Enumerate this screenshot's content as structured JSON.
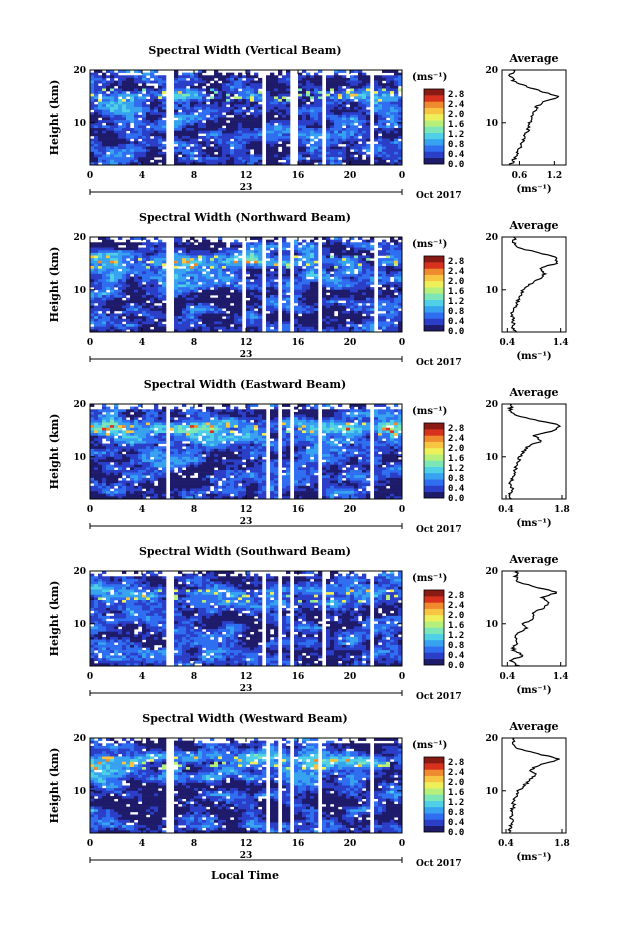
{
  "figure": {
    "x_axis_label": "Local Time",
    "date_suffix": "Oct 2017",
    "day_label": "23",
    "x_ticks": [
      "0",
      "4",
      "8",
      "12",
      "16",
      "20",
      "0"
    ],
    "y_label": "Height (km)",
    "y_ticks": [
      "20",
      "10"
    ],
    "colorbar_unit": "(ms⁻¹)",
    "colorbar_ticks": [
      "2.8",
      "2.4",
      "2.0",
      "1.6",
      "1.2",
      "0.8",
      "0.4",
      "0.0"
    ],
    "average_title": "Average",
    "average_unit": "(ms⁻¹)",
    "colors": {
      "colormap": [
        "#1f1b6b",
        "#2a3ec8",
        "#2f6ef0",
        "#36a2f0",
        "#4fd0e6",
        "#7ce6b6",
        "#b6ef7a",
        "#eef05a",
        "#f7c542",
        "#f08a2e",
        "#d8321e",
        "#8a1a14"
      ],
      "no_data": "#ffffff",
      "axis": "#000000"
    }
  },
  "chart_data": [
    {
      "type": "heatmap",
      "title": "Spectral Width (Vertical Beam)",
      "xlabel": "",
      "ylabel": "Height (km)",
      "xlim": [
        0,
        24
      ],
      "ylim": [
        2,
        20
      ],
      "color_range": [
        0.0,
        3.0
      ],
      "data_gaps_hours": [
        [
          5.9,
          6.4
        ],
        [
          13.3,
          13.6
        ],
        [
          14.4,
          14.6
        ],
        [
          15.3,
          15.9
        ],
        [
          17.8,
          18.1
        ],
        [
          21.6,
          21.9
        ]
      ],
      "average_profile": {
        "xlabel": "(ms⁻¹)",
        "xticks": [
          "0.6",
          "1.2"
        ],
        "xlim": [
          0.3,
          1.4
        ],
        "height_km": [
          2,
          3,
          4,
          5,
          6,
          7,
          8,
          9,
          10,
          11,
          12,
          13,
          14,
          15,
          16,
          17,
          18,
          19,
          20
        ],
        "value_ms": [
          0.45,
          0.5,
          0.55,
          0.6,
          0.63,
          0.68,
          0.72,
          0.75,
          0.78,
          0.8,
          0.85,
          0.9,
          1.0,
          1.3,
          0.95,
          0.7,
          0.5,
          0.45,
          0.5
        ]
      }
    },
    {
      "type": "heatmap",
      "title": "Spectral Width (Northward Beam)",
      "xlabel": "",
      "ylabel": "Height (km)",
      "xlim": [
        0,
        24
      ],
      "ylim": [
        2,
        20
      ],
      "color_range": [
        0.0,
        3.0
      ],
      "data_gaps_hours": [
        [
          6.0,
          6.5
        ],
        [
          11.7,
          12.0
        ],
        [
          13.3,
          13.6
        ],
        [
          14.6,
          14.9
        ],
        [
          15.3,
          15.6
        ],
        [
          17.6,
          17.9
        ],
        [
          21.7,
          22.0
        ]
      ],
      "average_profile": {
        "xlabel": "(ms⁻¹)",
        "xticks": [
          "0.4",
          "1.4"
        ],
        "xlim": [
          0.3,
          1.5
        ],
        "height_km": [
          2,
          3,
          4,
          5,
          6,
          7,
          8,
          9,
          10,
          11,
          12,
          13,
          14,
          15,
          16,
          17,
          18,
          19,
          20
        ],
        "value_ms": [
          0.55,
          0.5,
          0.52,
          0.48,
          0.5,
          0.55,
          0.6,
          0.65,
          0.7,
          0.8,
          1.0,
          1.1,
          1.0,
          1.3,
          1.35,
          1.0,
          0.6,
          0.5,
          0.55
        ]
      }
    },
    {
      "type": "heatmap",
      "title": "Spectral Width (Eastward Beam)",
      "xlabel": "",
      "ylabel": "Height (km)",
      "xlim": [
        0,
        24
      ],
      "ylim": [
        2,
        20
      ],
      "color_range": [
        0.0,
        3.0
      ],
      "data_gaps_hours": [
        [
          5.8,
          6.3
        ],
        [
          13.4,
          13.7
        ],
        [
          14.5,
          14.8
        ],
        [
          15.4,
          15.7
        ],
        [
          17.6,
          17.9
        ],
        [
          21.4,
          21.8
        ]
      ],
      "average_profile": {
        "xlabel": "(ms⁻¹)",
        "xticks": [
          "0.4",
          "1.8"
        ],
        "xlim": [
          0.3,
          1.9
        ],
        "height_km": [
          2,
          3,
          4,
          5,
          6,
          7,
          8,
          9,
          10,
          11,
          12,
          13,
          14,
          15,
          16,
          17,
          18,
          19,
          20
        ],
        "value_ms": [
          0.55,
          0.5,
          0.55,
          0.52,
          0.55,
          0.6,
          0.65,
          0.7,
          0.75,
          0.85,
          0.95,
          1.3,
          1.1,
          1.6,
          1.75,
          1.1,
          0.6,
          0.5,
          0.55
        ]
      }
    },
    {
      "type": "heatmap",
      "title": "Spectral Width (Southward Beam)",
      "xlabel": "",
      "ylabel": "Height (km)",
      "xlim": [
        0,
        24
      ],
      "ylim": [
        2,
        20
      ],
      "color_range": [
        0.0,
        3.0
      ],
      "data_gaps_hours": [
        [
          5.9,
          6.4
        ],
        [
          13.3,
          13.6
        ],
        [
          14.6,
          14.9
        ],
        [
          15.3,
          15.6
        ],
        [
          17.7,
          18.0
        ],
        [
          21.6,
          21.9
        ]
      ],
      "average_profile": {
        "xlabel": "(ms⁻¹)",
        "xticks": [
          "0.4",
          "1.4"
        ],
        "xlim": [
          0.3,
          1.5
        ],
        "height_km": [
          2,
          3,
          4,
          5,
          6,
          7,
          8,
          9,
          10,
          11,
          12,
          13,
          14,
          15,
          16,
          17,
          18,
          19,
          20
        ],
        "value_ms": [
          0.6,
          0.45,
          0.7,
          0.5,
          0.55,
          0.6,
          0.55,
          0.75,
          0.7,
          0.9,
          0.85,
          1.1,
          1.2,
          1.05,
          1.35,
          0.9,
          0.6,
          0.55,
          0.6
        ]
      }
    },
    {
      "type": "heatmap",
      "title": "Spectral Width (Westward Beam)",
      "xlabel": "Local Time",
      "ylabel": "Height (km)",
      "xlim": [
        0,
        24
      ],
      "ylim": [
        2,
        20
      ],
      "color_range": [
        0.0,
        3.0
      ],
      "data_gaps_hours": [
        [
          5.9,
          6.4
        ],
        [
          13.4,
          13.7
        ],
        [
          14.5,
          14.8
        ],
        [
          15.4,
          15.7
        ],
        [
          17.6,
          17.9
        ],
        [
          21.5,
          21.8
        ]
      ],
      "average_profile": {
        "xlabel": "(ms⁻¹)",
        "xticks": [
          "0.4",
          "1.8"
        ],
        "xlim": [
          0.3,
          1.9
        ],
        "height_km": [
          2,
          3,
          4,
          5,
          6,
          7,
          8,
          9,
          10,
          11,
          12,
          13,
          14,
          15,
          16,
          17,
          18,
          19,
          20
        ],
        "value_ms": [
          0.5,
          0.5,
          0.55,
          0.52,
          0.55,
          0.58,
          0.6,
          0.65,
          0.72,
          0.85,
          1.0,
          1.15,
          1.0,
          1.3,
          1.75,
          1.2,
          0.65,
          0.55,
          0.6
        ]
      }
    }
  ]
}
